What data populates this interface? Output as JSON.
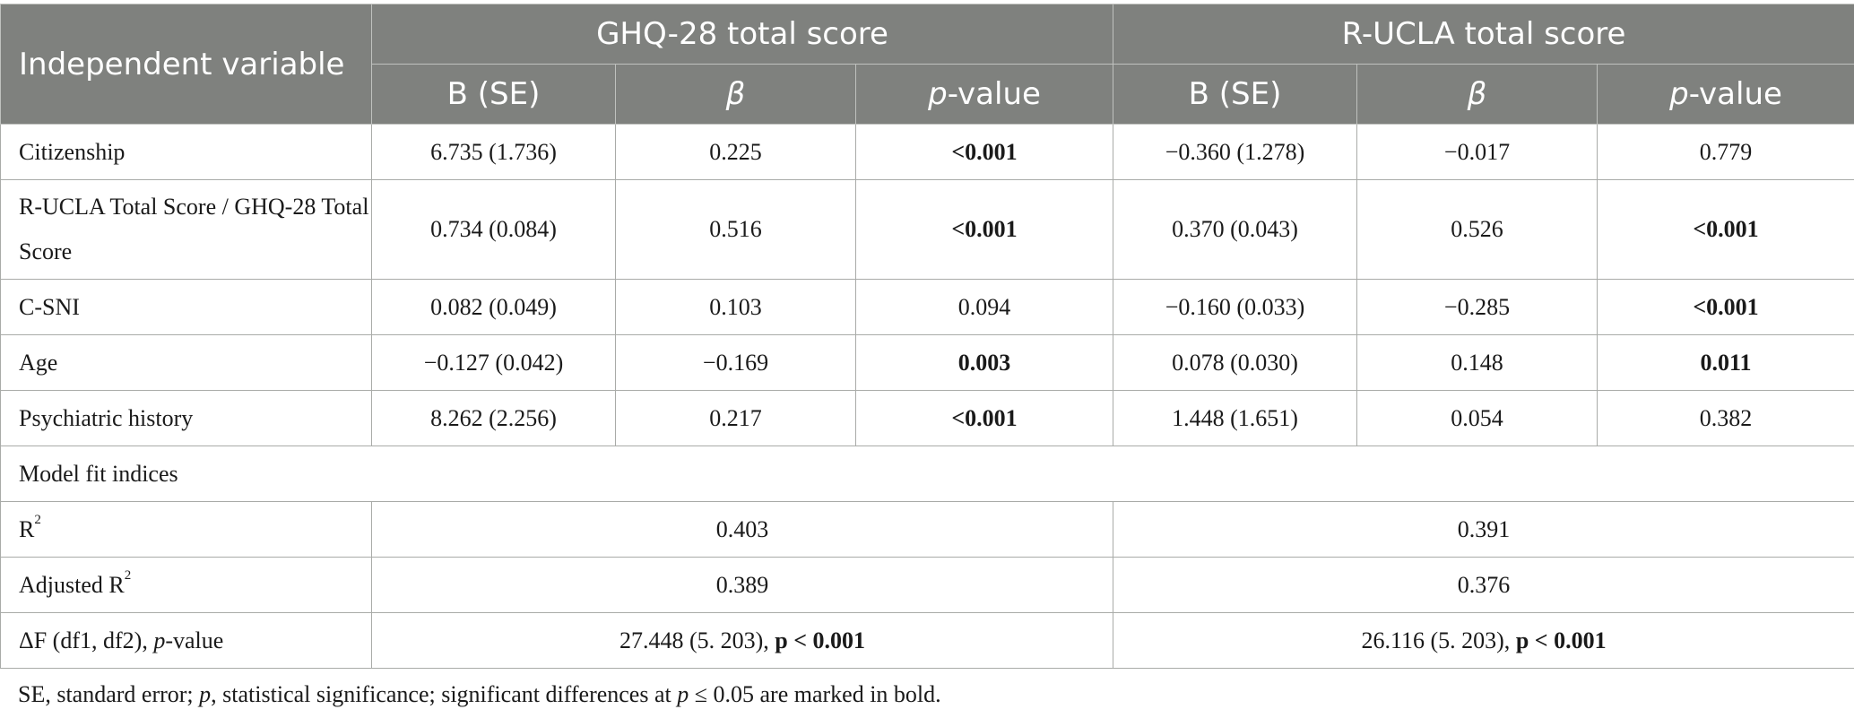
{
  "header": {
    "independent_variable": "Independent variable",
    "group1": "GHQ-28 total score",
    "group2": "R-UCLA total score",
    "sub": {
      "b_se": "B (SE)",
      "beta": "β",
      "p": "p",
      "value_suffix": "-value"
    }
  },
  "rows": [
    {
      "label": "Citizenship",
      "g1": [
        "6.735 (1.736)",
        "0.225",
        "<0.001"
      ],
      "g2": [
        "−0.360 (1.278)",
        "−0.017",
        "0.779"
      ]
    },
    {
      "label": "R-UCLA Total Score / GHQ-28 Total Score",
      "g1": [
        "0.734 (0.084)",
        "0.516",
        "<0.001"
      ],
      "g2": [
        "0.370 (0.043)",
        "0.526",
        "<0.001"
      ]
    },
    {
      "label": "C-SNI",
      "g1": [
        "0.082 (0.049)",
        "0.103",
        "0.094"
      ],
      "g2": [
        "−0.160 (0.033)",
        "−0.285",
        "<0.001"
      ]
    },
    {
      "label": "Age",
      "g1": [
        "−0.127 (0.042)",
        "−0.169",
        "0.003"
      ],
      "g2": [
        "0.078 (0.030)",
        "0.148",
        "0.011"
      ]
    },
    {
      "label": "Psychiatric history",
      "g1": [
        "8.262 (2.256)",
        "0.217",
        "<0.001"
      ],
      "g2": [
        "1.448 (1.651)",
        "0.054",
        "0.382"
      ]
    }
  ],
  "model_fit": {
    "section_label": "Model fit indices",
    "r2_label": "R",
    "r2_sup": "2",
    "r2_g1": "0.403",
    "r2_g2": "0.391",
    "adj_r2_label": "Adjusted R",
    "adj_r2_sup": "2",
    "adj_r2_g1": "0.389",
    "adj_r2_g2": "0.376",
    "df_label_pre": "ΔF (df1, df2), ",
    "df_label_p": "p",
    "df_label_post": "-value",
    "df_g1_pre": "27.448 (5. 203), ",
    "df_g1_bold": "p < 0.001",
    "df_g2_pre": "26.116 (5. 203), ",
    "df_g2_bold": "p < 0.001"
  },
  "footnote": {
    "part1": "SE, standard error; ",
    "p1": "p",
    "part2": ", statistical significance; significant differences at ",
    "p2": "p",
    "part3": " ≤ 0.05 are marked in bold."
  }
}
